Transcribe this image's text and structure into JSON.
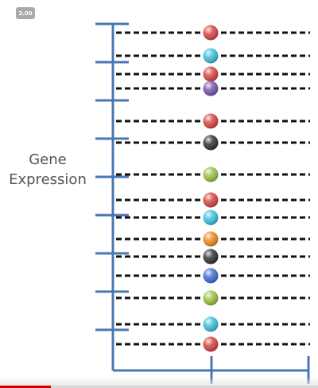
{
  "badge": {
    "speed_label": "2.00"
  },
  "axis": {
    "label_line1": "Gene",
    "label_line2": "Expression"
  },
  "colors": {
    "axis": "#4a77b4",
    "dash": "#111111",
    "red": "#d84545",
    "cyan": "#3cc1df",
    "purple": "#7a55b0",
    "black": "#333333",
    "green": "#9ac045",
    "orange": "#ef8a1c",
    "blue": "#3f6fd2",
    "progress": "#cc0000"
  },
  "chart_data": {
    "type": "scatter",
    "rows": [
      {
        "gene": 1,
        "color": "red"
      },
      {
        "gene": 2,
        "color": "cyan"
      },
      {
        "gene": 3,
        "color": "red"
      },
      {
        "gene": 4,
        "color": "purple"
      },
      {
        "gene": 5,
        "color": "red"
      },
      {
        "gene": 6,
        "color": "black"
      },
      {
        "gene": 7,
        "color": "green"
      },
      {
        "gene": 8,
        "color": "red"
      },
      {
        "gene": 9,
        "color": "cyan"
      },
      {
        "gene": 10,
        "color": "orange"
      },
      {
        "gene": 11,
        "color": "black"
      },
      {
        "gene": 12,
        "color": "blue"
      },
      {
        "gene": 13,
        "color": "green"
      },
      {
        "gene": 14,
        "color": "cyan"
      },
      {
        "gene": 15,
        "color": "red"
      }
    ]
  },
  "progress": {
    "fraction": 0.16
  }
}
